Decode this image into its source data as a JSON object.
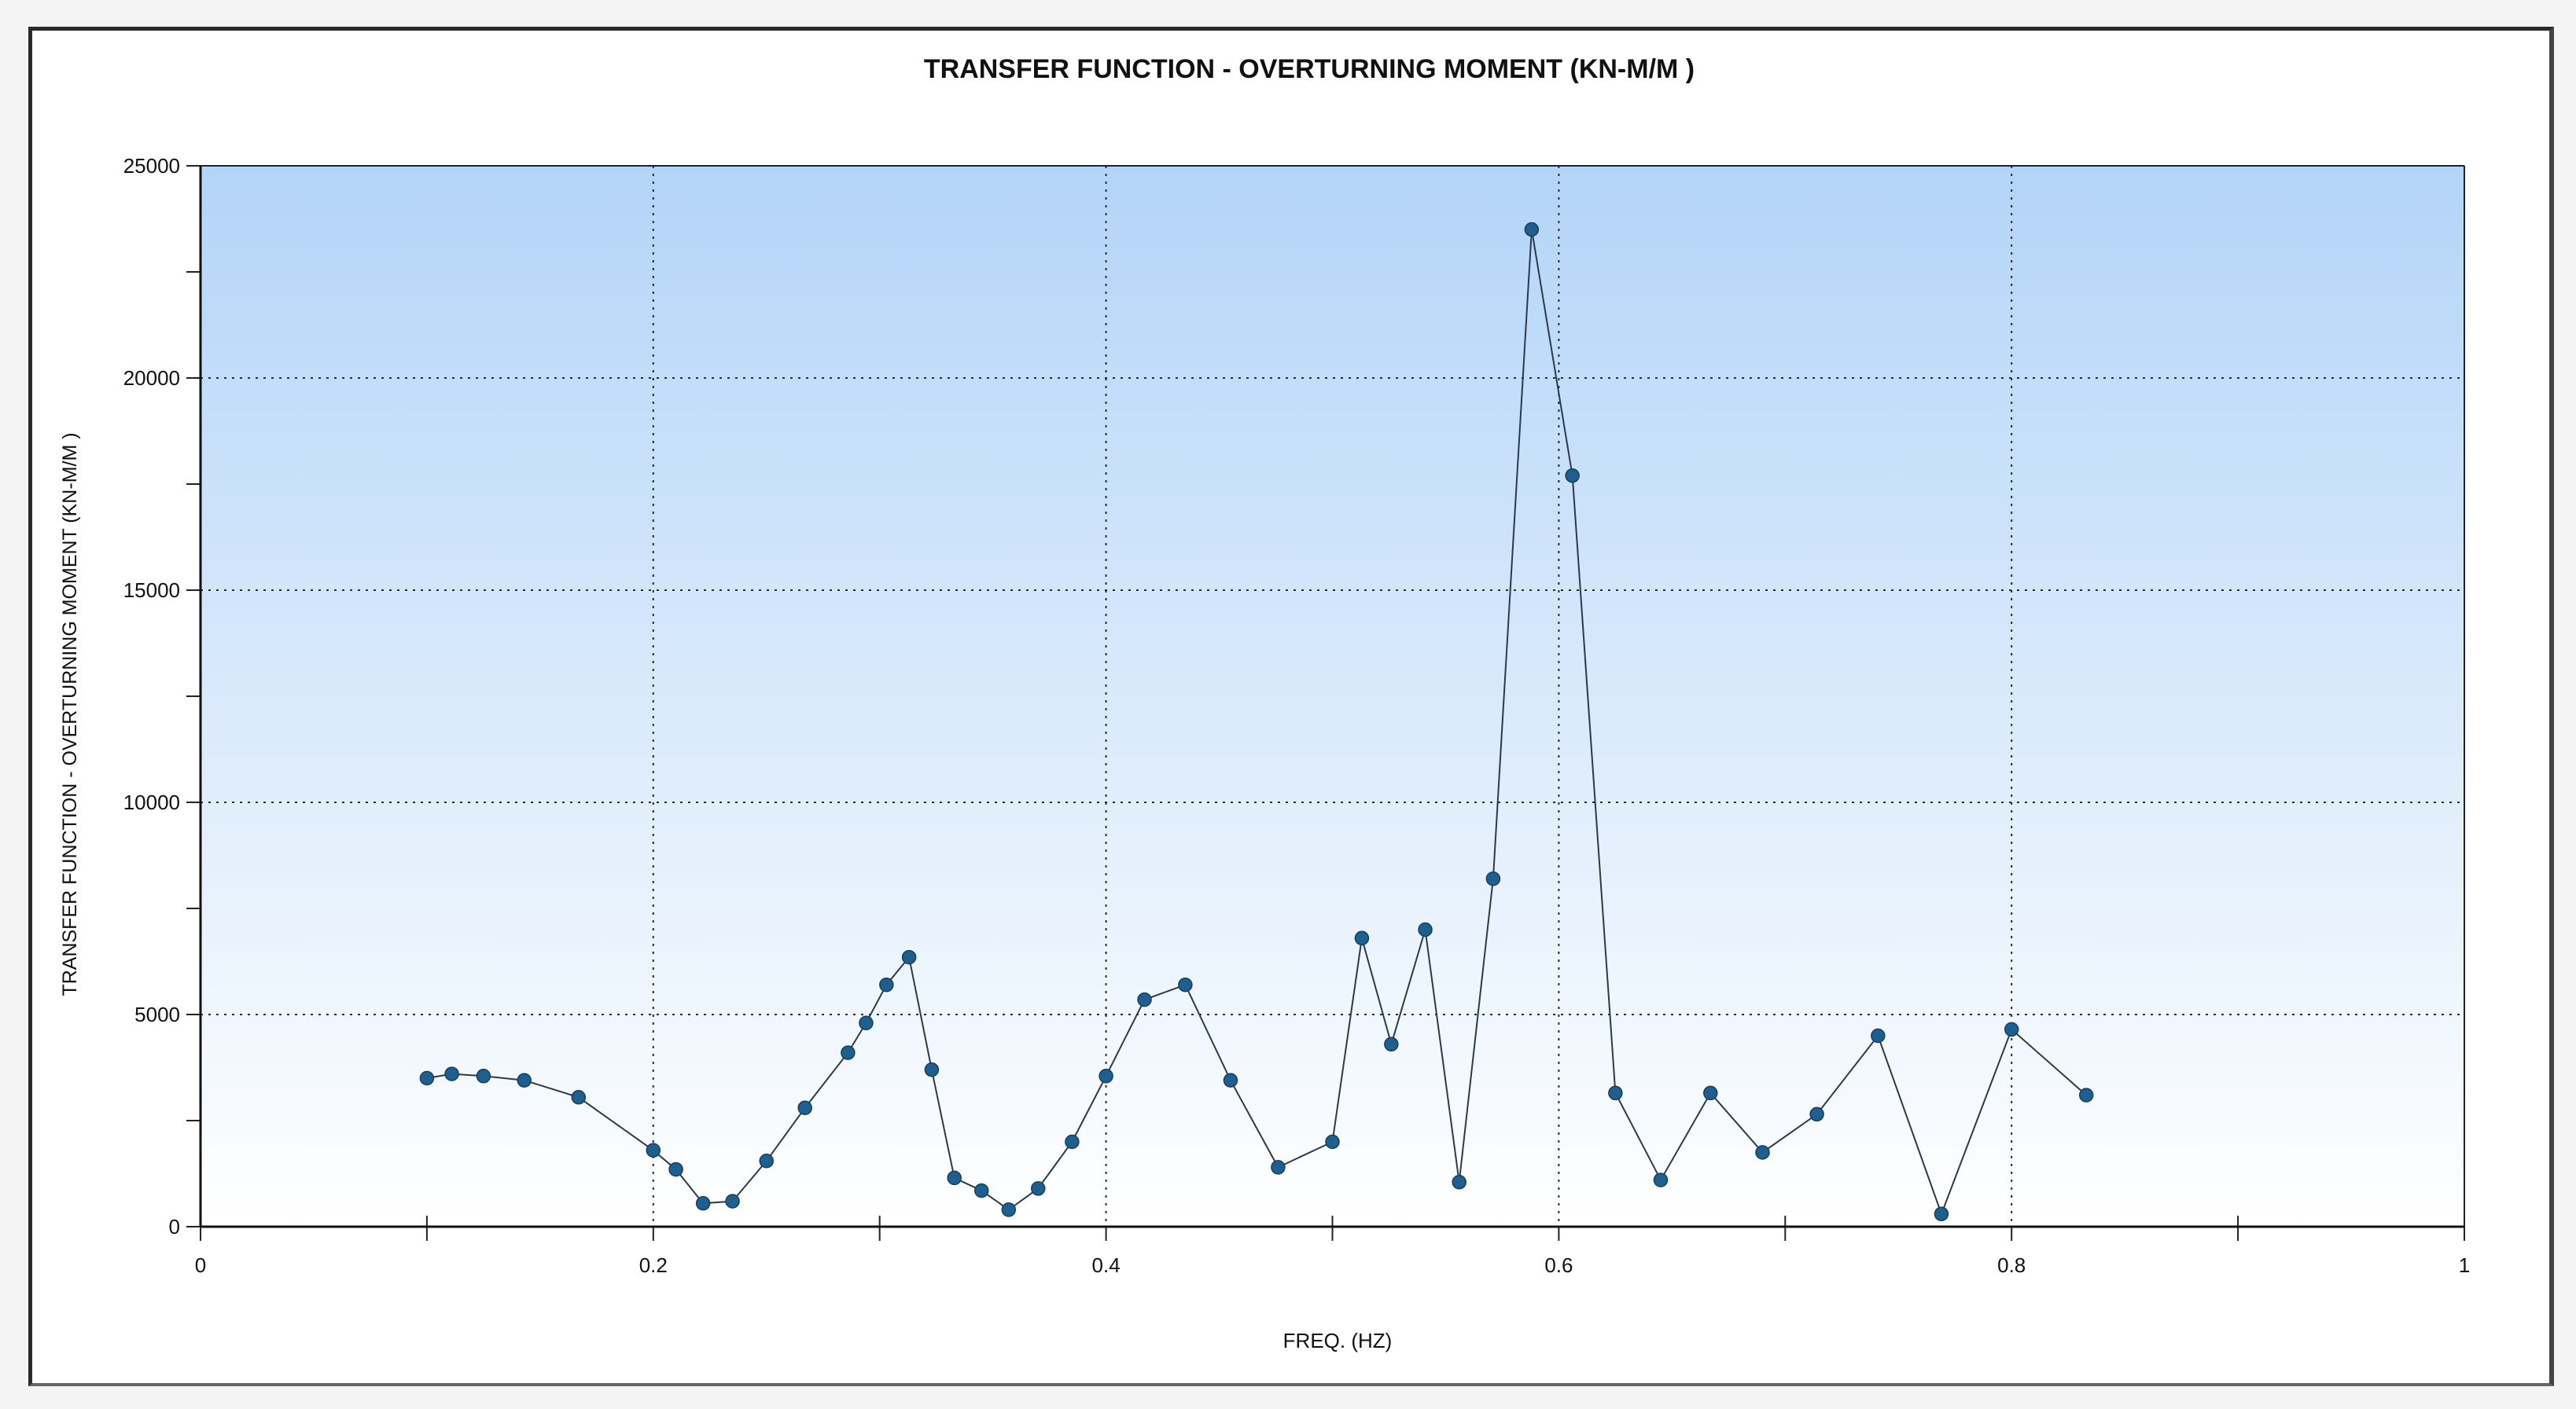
{
  "chart_data": {
    "type": "line",
    "title": "TRANSFER FUNCTION - OVERTURNING MOMENT (KN-M/M )",
    "xlabel": "FREQ. (HZ)",
    "ylabel": "TRANSFER FUNCTION - OVERTURNING MOMENT (KN-M/M )",
    "xlim": [
      0,
      1
    ],
    "ylim": [
      0,
      25000
    ],
    "x_ticks": [
      "0",
      "0.2",
      "0.4",
      "0.6",
      "0.8",
      "1"
    ],
    "y_ticks": [
      "0",
      "5000",
      "10000",
      "15000",
      "20000",
      "25000"
    ],
    "grid": true,
    "legend": "none",
    "colors": {
      "line": "#2b3a4a",
      "marker": "#1f5f8f",
      "background_top": "#b3d4f8",
      "background_bottom": "#ffffff",
      "grid": "#2a2a2a"
    },
    "series": [
      {
        "x": [
          0.1,
          0.111,
          0.125,
          0.143,
          0.167,
          0.2,
          0.21,
          0.222,
          0.235,
          0.25,
          0.267,
          0.286,
          0.294,
          0.303,
          0.313,
          0.323,
          0.333,
          0.345,
          0.357,
          0.37,
          0.385,
          0.4,
          0.417,
          0.435,
          0.455,
          0.476,
          0.5,
          0.513,
          0.526,
          0.541,
          0.556,
          0.571,
          0.588,
          0.606,
          0.625,
          0.645,
          0.667,
          0.69,
          0.714,
          0.741,
          0.769,
          0.8,
          0.833
        ],
        "values": [
          3500,
          3600,
          3550,
          3450,
          3050,
          1800,
          1350,
          550,
          600,
          1550,
          2800,
          4100,
          4800,
          5700,
          6350,
          3700,
          1150,
          850,
          400,
          900,
          2000,
          3550,
          5350,
          5700,
          3450,
          1400,
          2000,
          6800,
          4300,
          7000,
          1050,
          8200,
          23500,
          17700,
          3150,
          1100,
          3150,
          1750,
          2650,
          4500,
          300,
          4650,
          3100
        ]
      }
    ]
  }
}
